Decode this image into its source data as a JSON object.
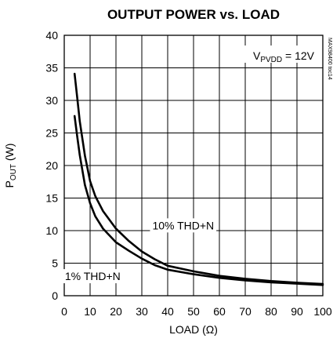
{
  "chart_data": {
    "type": "line",
    "title": "OUTPUT POWER vs. LOAD",
    "ylabel": {
      "main": "P",
      "sub": "OUT",
      "unit": " (W)"
    },
    "xlabel": "LOAD (Ω)",
    "xlim": [
      0,
      100
    ],
    "ylim": [
      0,
      40
    ],
    "xticks": [
      0,
      10,
      20,
      30,
      40,
      50,
      60,
      70,
      80,
      90,
      100
    ],
    "yticks": [
      0,
      5,
      10,
      15,
      20,
      25,
      30,
      35,
      40
    ],
    "grid": true,
    "condition": {
      "main": "V",
      "sub": "PVDD",
      "rest": " = 12V"
    },
    "side_code": "MAX98400 toc14",
    "series": [
      {
        "name": "10% THD+N",
        "x": [
          4,
          5,
          6,
          8,
          10,
          12,
          15,
          20,
          25,
          30,
          35,
          40,
          50,
          60,
          70,
          80,
          90,
          100
        ],
        "y": [
          34.1,
          30.5,
          26.8,
          21.5,
          17.6,
          15.3,
          13.0,
          10.3,
          8.4,
          6.8,
          5.6,
          4.6,
          3.75,
          3.05,
          2.6,
          2.25,
          2.0,
          1.8
        ]
      },
      {
        "name": "1% THD+N",
        "x": [
          4,
          5,
          6,
          8,
          10,
          12,
          15,
          20,
          25,
          30,
          35,
          40,
          50,
          60,
          70,
          80,
          90,
          100
        ],
        "y": [
          27.6,
          24.5,
          21.6,
          17.0,
          14.2,
          12.2,
          10.3,
          8.2,
          6.9,
          5.7,
          4.7,
          4.0,
          3.3,
          2.75,
          2.35,
          2.05,
          1.85,
          1.65
        ]
      }
    ],
    "annotations": [
      {
        "text": "10% THD+N",
        "x": 46,
        "y": 10.2
      },
      {
        "text": "1% THD+N",
        "x": 11,
        "y": 2.4
      }
    ]
  }
}
